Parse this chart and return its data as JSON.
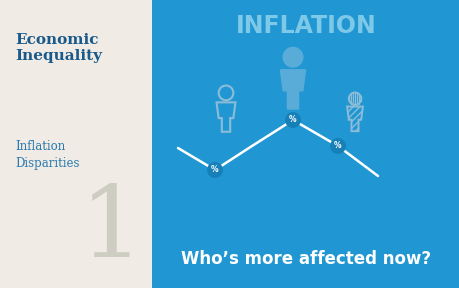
{
  "left_bg_color": "#f0ebe4",
  "right_bg_color": "#2096d3",
  "title_inflation": "INFLATION",
  "title_inflation_color": "#7ec8e8",
  "subtitle": "Who’s more affected now?",
  "subtitle_color": "#ffffff",
  "label_economic": "Economic\nInequality",
  "label_economic_color": "#1a5a8a",
  "label_inflation": "Inflation\nDisparities",
  "label_inflation_color": "#2a7ab0",
  "number_color": "#c8c8bc",
  "number": "1",
  "line_color": "#ffffff",
  "pct_circle_color": "#1780b8",
  "person1_color": "#8bbdd8",
  "person2_color": "#5aacd8",
  "person3_color": "#8bbdd8"
}
